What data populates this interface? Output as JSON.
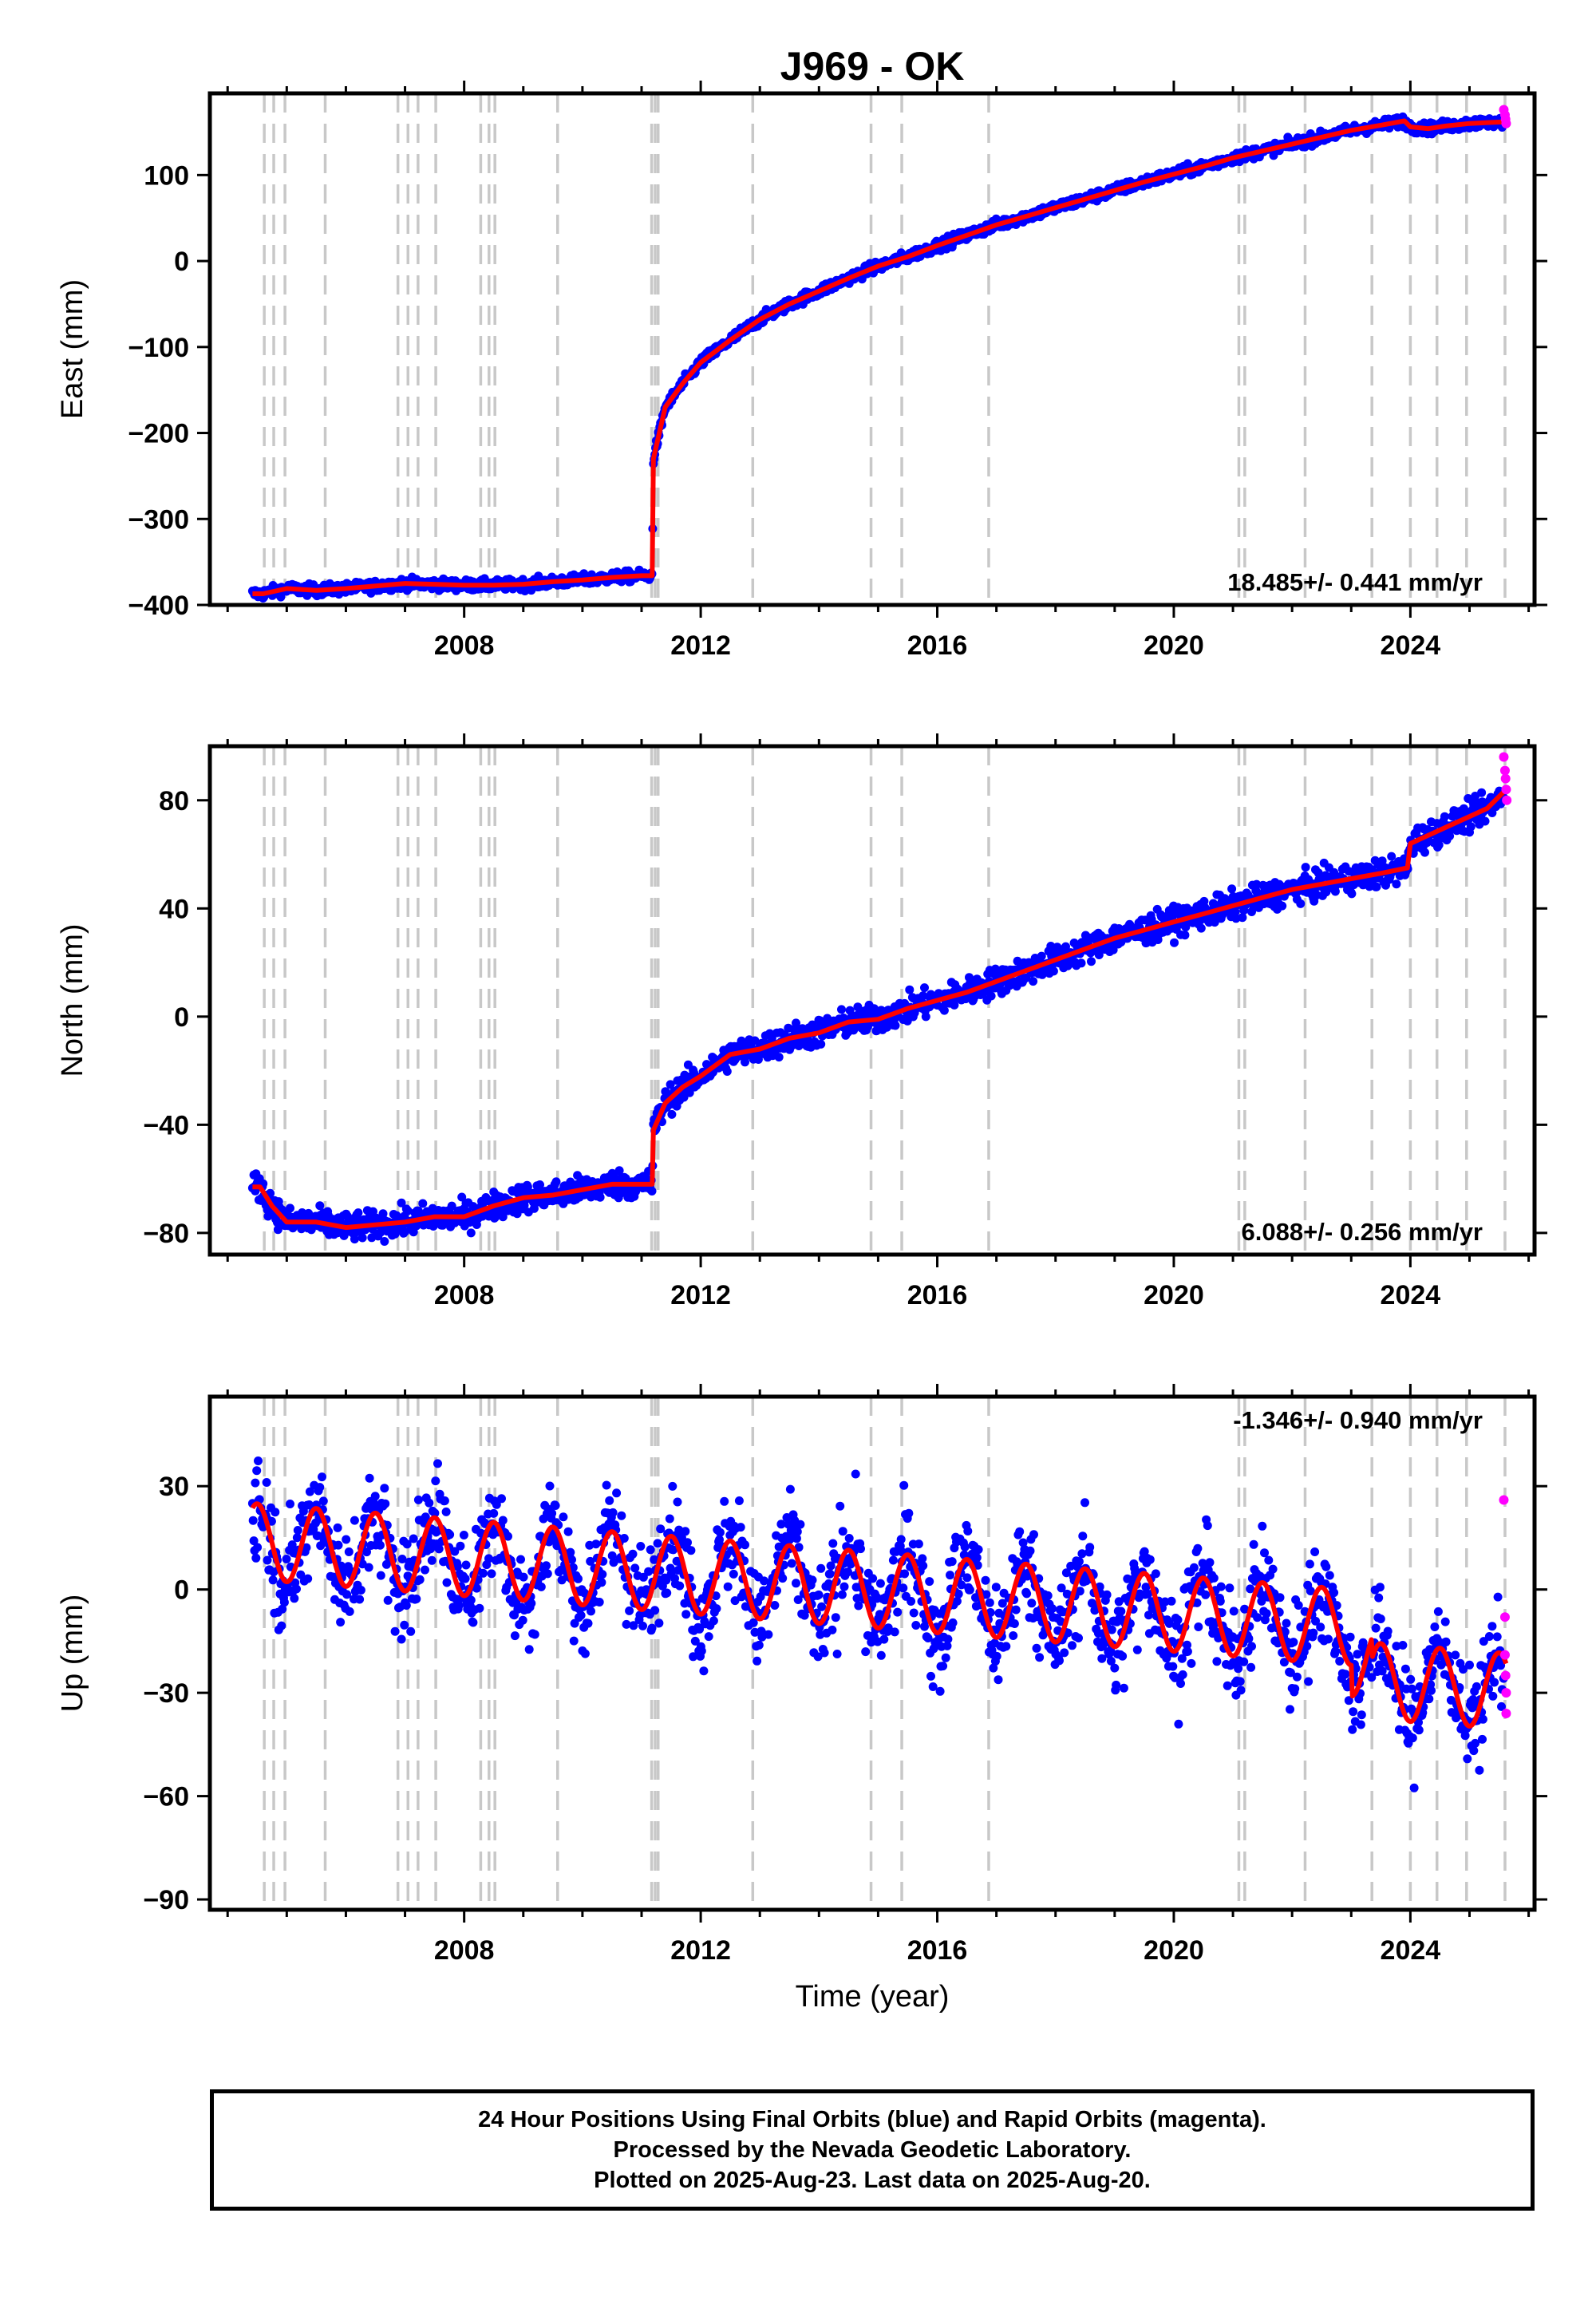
{
  "title": "J969 - OK",
  "xlabel": "Time (year)",
  "caption": [
    "24 Hour Positions Using Final Orbits (blue) and Rapid Orbits (magenta).",
    "Processed by the Nevada Geodetic Laboratory.",
    "Plotted on 2025-Aug-23. Last data on 2025-Aug-20."
  ],
  "colors": {
    "final": "#0000ff",
    "rapid": "#ff00ff",
    "model": "#ff0000",
    "events": "#c8c8c8",
    "axes": "#000000"
  },
  "chart_data": [
    {
      "type": "scatter",
      "ylabel": "East (mm)",
      "rate": "18.485+/- 0.441 mm/yr",
      "rate_position": "bottom-right",
      "xlim": [
        2003.7,
        2026.1
      ],
      "ylim": [
        -400,
        195
      ],
      "xticks": [
        2008,
        2012,
        2016,
        2020,
        2024
      ],
      "yticks": [
        -400,
        -300,
        -200,
        -100,
        0,
        100
      ],
      "events": [
        2004.62,
        2004.78,
        2004.97,
        2005.65,
        2006.88,
        2007.05,
        2007.22,
        2007.52,
        2008.28,
        2008.42,
        2008.52,
        2009.58,
        2011.17,
        2011.23,
        2011.28,
        2012.88,
        2014.88,
        2015.4,
        2016.87,
        2021.1,
        2021.2,
        2022.22,
        2023.35,
        2024.0,
        2024.45,
        2024.95,
        2025.6
      ],
      "model": {
        "x": [
          2004.42,
          2004.6,
          2005.0,
          2005.5,
          2006.0,
          2006.5,
          2007.0,
          2007.5,
          2008.0,
          2008.5,
          2009.0,
          2009.5,
          2010.0,
          2010.5,
          2011.0,
          2011.18,
          2011.2,
          2011.4,
          2011.7,
          2012.0,
          2012.5,
          2013.0,
          2013.5,
          2014.0,
          2014.5,
          2015.0,
          2015.5,
          2016.0,
          2016.5,
          2017.0,
          2017.5,
          2018.0,
          2018.5,
          2019.0,
          2019.5,
          2020.0,
          2020.5,
          2021.0,
          2021.5,
          2022.0,
          2022.5,
          2023.0,
          2023.5,
          2023.9,
          2024.0,
          2024.3,
          2024.6,
          2025.0,
          2025.3,
          2025.62
        ],
        "y": [
          -387,
          -387,
          -381,
          -383,
          -381,
          -378,
          -375,
          -376,
          -377,
          -377,
          -376,
          -373,
          -371,
          -368,
          -366,
          -366,
          -230,
          -170,
          -142,
          -118,
          -92,
          -68,
          -50,
          -35,
          -20,
          -6,
          5,
          18,
          30,
          42,
          52,
          62,
          72,
          82,
          92,
          101,
          110,
          120,
          128,
          136,
          144,
          152,
          158,
          163,
          156,
          154,
          157,
          160,
          161,
          162
        ]
      },
      "rapid": {
        "x": [
          2025.58,
          2025.6,
          2025.61,
          2025.62
        ],
        "y": [
          176,
          170,
          165,
          160
        ]
      }
    },
    {
      "type": "scatter",
      "ylabel": "North (mm)",
      "rate": "6.088+/- 0.256 mm/yr",
      "rate_position": "bottom-right",
      "xlim": [
        2003.7,
        2026.1
      ],
      "ylim": [
        -88,
        100
      ],
      "xticks": [
        2008,
        2012,
        2016,
        2020,
        2024
      ],
      "yticks": [
        -80,
        -40,
        0,
        40,
        80
      ],
      "events": [
        2004.62,
        2004.78,
        2004.97,
        2005.65,
        2006.88,
        2007.05,
        2007.22,
        2007.52,
        2008.28,
        2008.42,
        2008.52,
        2009.58,
        2011.17,
        2011.23,
        2011.28,
        2012.88,
        2014.88,
        2015.4,
        2016.87,
        2021.1,
        2021.2,
        2022.22,
        2023.35,
        2024.0,
        2024.45,
        2024.95,
        2025.6
      ],
      "model": {
        "x": [
          2004.42,
          2004.55,
          2004.75,
          2005.0,
          2005.5,
          2006.0,
          2006.5,
          2007.0,
          2007.5,
          2008.0,
          2008.5,
          2009.0,
          2009.5,
          2010.0,
          2010.5,
          2011.0,
          2011.18,
          2011.2,
          2011.4,
          2011.7,
          2012.0,
          2012.5,
          2013.0,
          2013.5,
          2014.0,
          2014.5,
          2015.0,
          2015.5,
          2016.0,
          2016.5,
          2017.0,
          2017.5,
          2018.0,
          2018.5,
          2019.0,
          2019.5,
          2020.0,
          2020.5,
          2021.0,
          2021.5,
          2022.0,
          2022.5,
          2023.0,
          2023.5,
          2023.95,
          2024.0,
          2024.3,
          2024.6,
          2025.0,
          2025.3,
          2025.62
        ],
        "y": [
          -63,
          -63,
          -70,
          -76,
          -76,
          -78,
          -77,
          -76,
          -74,
          -74,
          -70,
          -67,
          -66,
          -64,
          -62,
          -62,
          -62,
          -42,
          -32,
          -26,
          -22,
          -14,
          -12,
          -8,
          -6,
          -2,
          -1,
          3,
          6,
          9,
          13,
          17,
          21,
          25,
          29,
          32,
          35,
          38,
          41,
          44,
          47,
          49,
          51,
          53,
          55,
          64,
          67,
          70,
          74,
          77,
          84
        ]
      },
      "rapid": {
        "x": [
          2025.58,
          2025.6,
          2025.61,
          2025.62,
          2025.63
        ],
        "y": [
          96,
          91,
          88,
          84,
          80
        ]
      }
    },
    {
      "type": "scatter",
      "ylabel": "Up (mm)",
      "rate": "-1.346+/- 0.940 mm/yr",
      "rate_position": "top-right",
      "xlim": [
        2003.7,
        2026.1
      ],
      "ylim": [
        -93,
        56
      ],
      "xticks": [
        2008,
        2012,
        2016,
        2020,
        2024
      ],
      "yticks": [
        -90,
        -60,
        -30,
        0,
        30
      ],
      "events": [
        2004.62,
        2004.78,
        2004.97,
        2005.65,
        2006.88,
        2007.05,
        2007.22,
        2007.52,
        2008.28,
        2008.42,
        2008.52,
        2009.58,
        2011.17,
        2011.23,
        2011.28,
        2012.88,
        2014.88,
        2015.4,
        2016.87,
        2021.1,
        2021.2,
        2022.22,
        2023.35,
        2024.0,
        2024.45,
        2024.95,
        2025.6
      ],
      "model": {
        "trend_start": 14,
        "trend_rate": -1.346,
        "amplitude": 11,
        "phase_year": 2005.5,
        "steps": [
          {
            "x": 2023.0,
            "dy": -9
          },
          {
            "x": 2023.35,
            "dy": -6
          }
        ],
        "x_start": 2004.42,
        "x_end": 2025.62
      },
      "rapid": {
        "x": [
          2025.58,
          2025.6,
          2025.6,
          2025.61,
          2025.62,
          2025.62
        ],
        "y": [
          26,
          -8,
          -19,
          -25,
          -30,
          -36
        ]
      }
    }
  ]
}
